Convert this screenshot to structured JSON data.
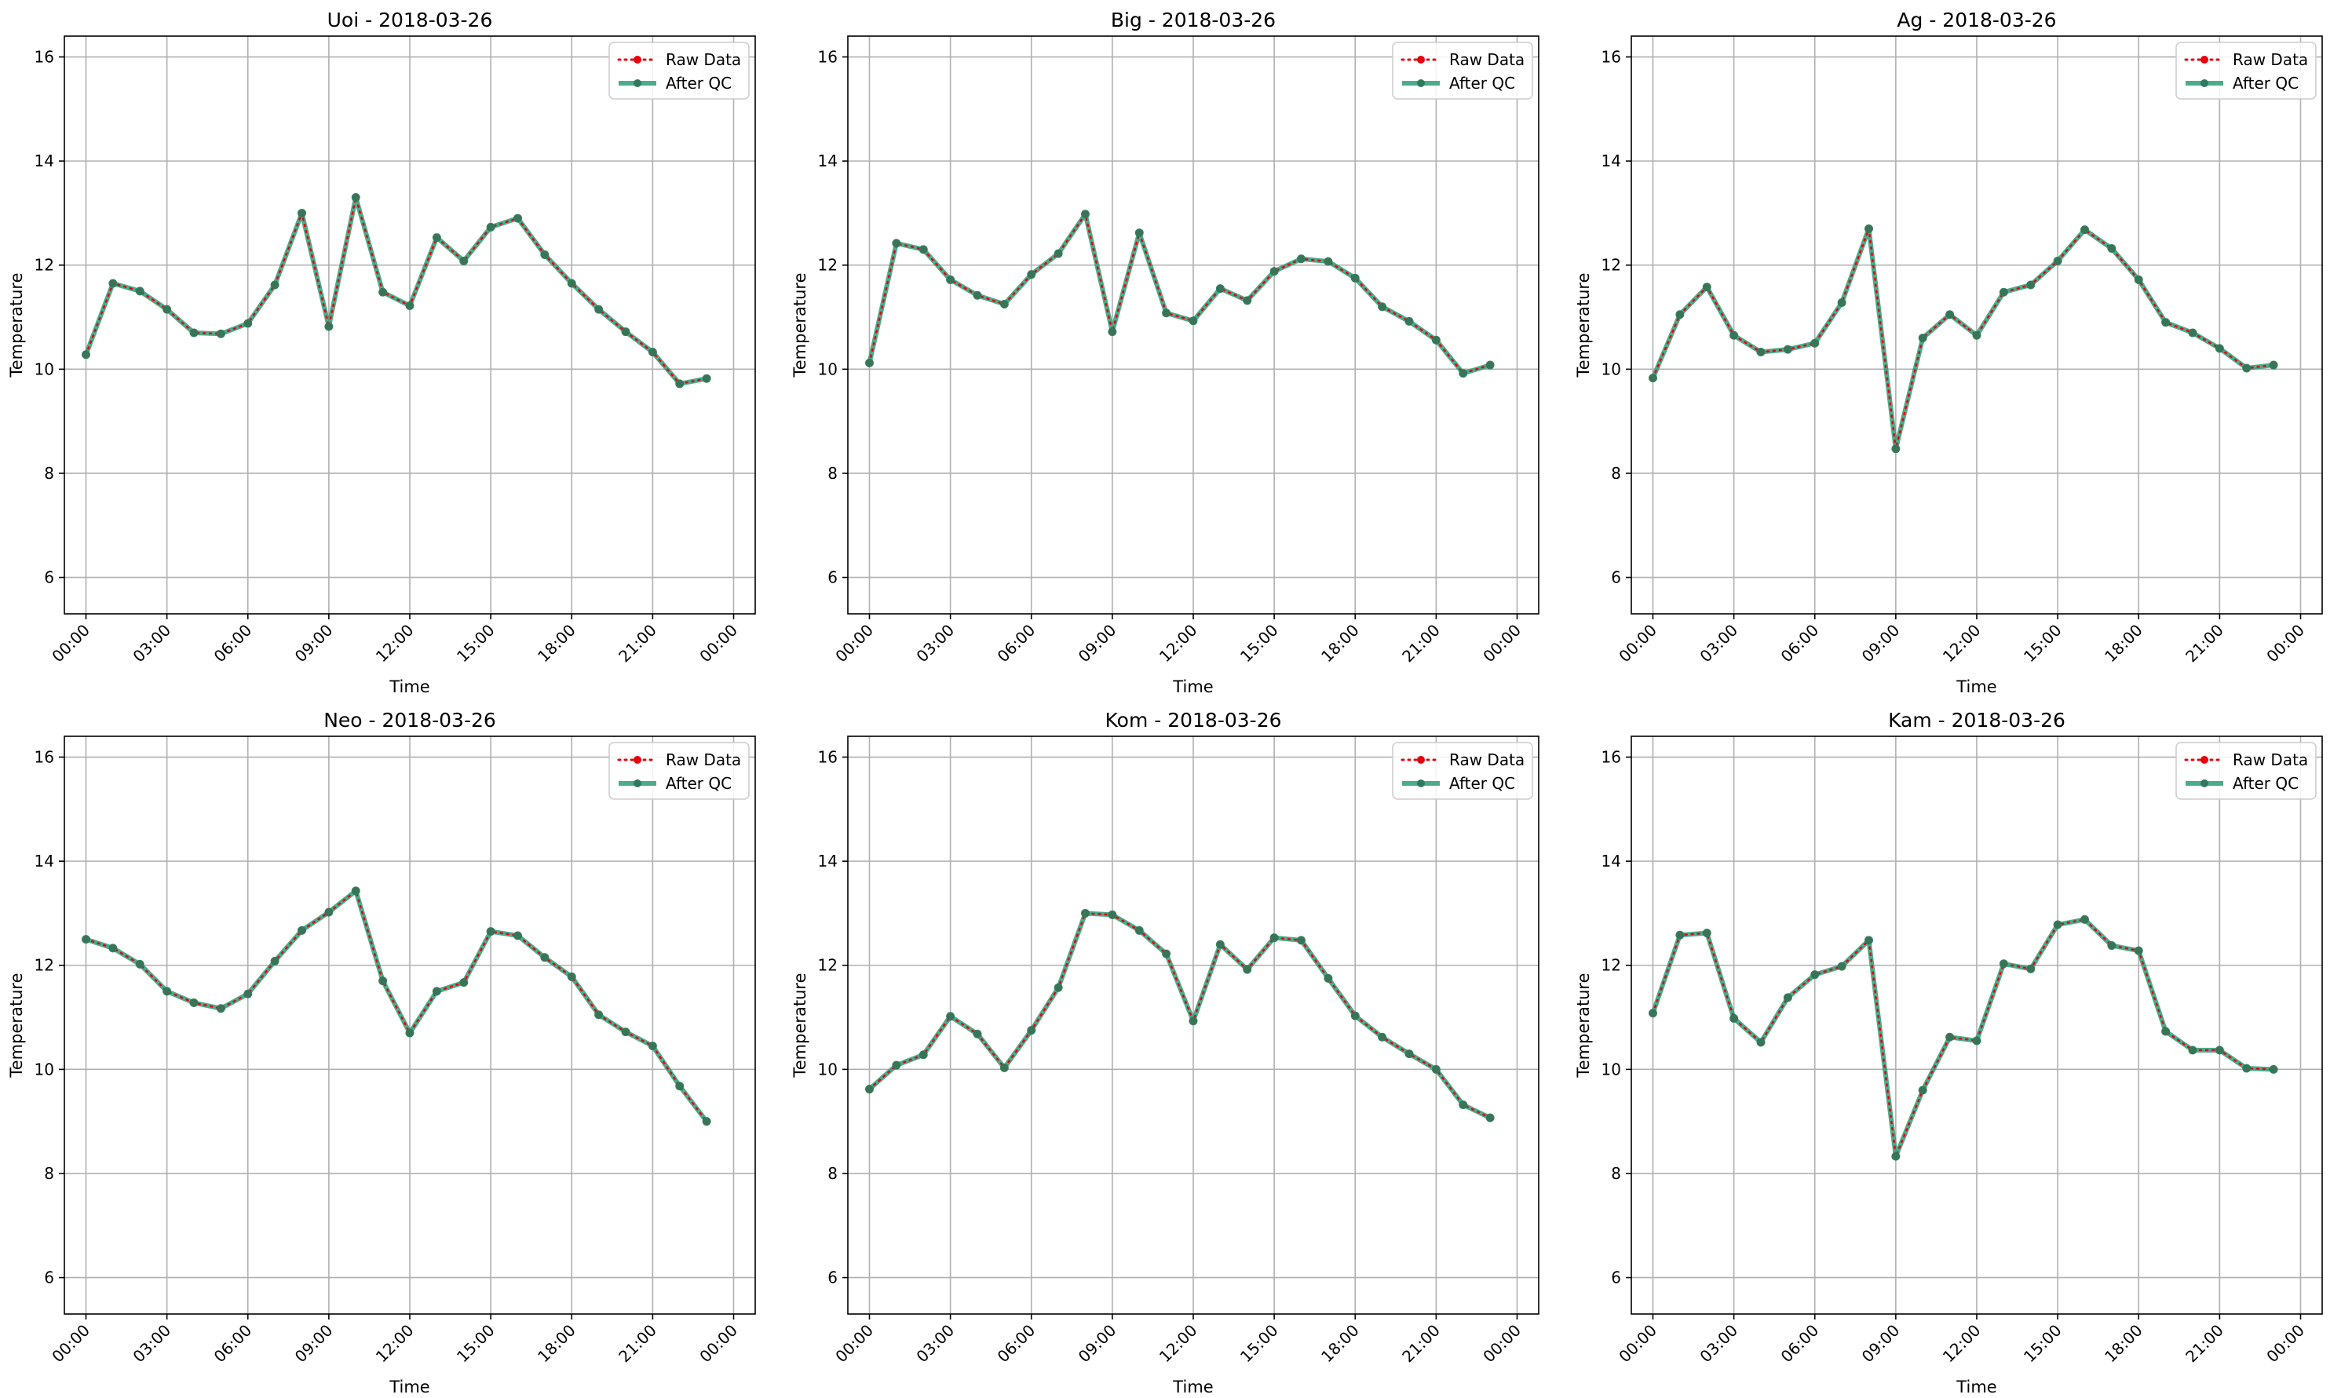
{
  "figure": {
    "ylabel": "Temperature",
    "xlabel": "Time",
    "legend": [
      "Raw Data",
      "After QC"
    ]
  },
  "chart_data": [
    {
      "type": "line",
      "title": "Uoi - 2018-03-26",
      "xlabel": "Time",
      "ylabel": "Temperature",
      "ylim": [
        5.3,
        16.4
      ],
      "yticks": [
        6,
        8,
        10,
        12,
        14,
        16
      ],
      "xticks": [
        "00:00",
        "03:00",
        "06:00",
        "09:00",
        "12:00",
        "15:00",
        "18:00",
        "21:00",
        "00:00"
      ],
      "grid": true,
      "legend_position": "top-right",
      "x": [
        "00:00",
        "01:00",
        "02:00",
        "03:00",
        "04:00",
        "05:00",
        "06:00",
        "07:00",
        "08:00",
        "09:00",
        "10:00",
        "11:00",
        "12:00",
        "13:00",
        "14:00",
        "15:00",
        "16:00",
        "17:00",
        "18:00",
        "19:00",
        "20:00",
        "21:00",
        "22:00",
        "23:00"
      ],
      "series": [
        {
          "name": "Raw Data",
          "color": "#e8000b",
          "values": [
            10.28,
            11.65,
            11.5,
            11.15,
            10.7,
            10.68,
            10.88,
            11.62,
            13.0,
            10.82,
            13.3,
            11.48,
            11.22,
            12.53,
            12.08,
            12.73,
            12.9,
            12.2,
            11.65,
            11.15,
            10.72,
            10.33,
            9.72,
            9.82
          ]
        },
        {
          "name": "After QC",
          "color": "#2a9d78",
          "values": [
            10.28,
            11.65,
            11.5,
            11.15,
            10.7,
            10.68,
            10.88,
            11.62,
            13.0,
            10.82,
            13.3,
            11.48,
            11.22,
            12.53,
            12.08,
            12.73,
            12.9,
            12.2,
            11.65,
            11.15,
            10.72,
            10.33,
            9.72,
            9.82
          ]
        }
      ]
    },
    {
      "type": "line",
      "title": "Big - 2018-03-26",
      "xlabel": "Time",
      "ylabel": "Temperature",
      "ylim": [
        5.3,
        16.4
      ],
      "yticks": [
        6,
        8,
        10,
        12,
        14,
        16
      ],
      "xticks": [
        "00:00",
        "03:00",
        "06:00",
        "09:00",
        "12:00",
        "15:00",
        "18:00",
        "21:00",
        "00:00"
      ],
      "grid": true,
      "legend_position": "top-right",
      "x": [
        "00:00",
        "01:00",
        "02:00",
        "03:00",
        "04:00",
        "05:00",
        "06:00",
        "07:00",
        "08:00",
        "09:00",
        "10:00",
        "11:00",
        "12:00",
        "13:00",
        "14:00",
        "15:00",
        "16:00",
        "17:00",
        "18:00",
        "19:00",
        "20:00",
        "21:00",
        "22:00",
        "23:00"
      ],
      "series": [
        {
          "name": "Raw Data",
          "color": "#e8000b",
          "values": [
            10.12,
            12.42,
            12.3,
            11.72,
            11.42,
            11.25,
            11.82,
            12.22,
            12.98,
            10.72,
            12.62,
            11.08,
            10.93,
            11.55,
            11.32,
            11.88,
            12.12,
            12.07,
            11.75,
            11.2,
            10.92,
            10.56,
            9.92,
            10.08
          ]
        },
        {
          "name": "After QC",
          "color": "#2a9d78",
          "values": [
            10.12,
            12.42,
            12.3,
            11.72,
            11.42,
            11.25,
            11.82,
            12.22,
            12.98,
            10.72,
            12.62,
            11.08,
            10.93,
            11.55,
            11.32,
            11.88,
            12.12,
            12.07,
            11.75,
            11.2,
            10.92,
            10.56,
            9.92,
            10.08
          ]
        }
      ]
    },
    {
      "type": "line",
      "title": "Ag - 2018-03-26",
      "xlabel": "Time",
      "ylabel": "Temperature",
      "ylim": [
        5.3,
        16.4
      ],
      "yticks": [
        6,
        8,
        10,
        12,
        14,
        16
      ],
      "xticks": [
        "00:00",
        "03:00",
        "06:00",
        "09:00",
        "12:00",
        "15:00",
        "18:00",
        "21:00",
        "00:00"
      ],
      "grid": true,
      "legend_position": "top-right",
      "x": [
        "00:00",
        "01:00",
        "02:00",
        "03:00",
        "04:00",
        "05:00",
        "06:00",
        "07:00",
        "08:00",
        "09:00",
        "10:00",
        "11:00",
        "12:00",
        "13:00",
        "14:00",
        "15:00",
        "16:00",
        "17:00",
        "18:00",
        "19:00",
        "20:00",
        "21:00",
        "22:00",
        "23:00"
      ],
      "series": [
        {
          "name": "Raw Data",
          "color": "#e8000b",
          "values": [
            9.83,
            11.05,
            11.58,
            10.65,
            10.33,
            10.38,
            10.5,
            11.28,
            12.7,
            8.47,
            10.6,
            11.05,
            10.65,
            11.48,
            11.62,
            12.08,
            12.68,
            12.32,
            11.72,
            10.9,
            10.7,
            10.4,
            10.02,
            10.08
          ]
        },
        {
          "name": "After QC",
          "color": "#2a9d78",
          "values": [
            9.83,
            11.05,
            11.58,
            10.65,
            10.33,
            10.38,
            10.5,
            11.28,
            12.7,
            8.47,
            10.6,
            11.05,
            10.65,
            11.48,
            11.62,
            12.08,
            12.68,
            12.32,
            11.72,
            10.9,
            10.7,
            10.4,
            10.02,
            10.08
          ]
        }
      ]
    },
    {
      "type": "line",
      "title": "Neo - 2018-03-26",
      "xlabel": "Time",
      "ylabel": "Temperature",
      "ylim": [
        5.3,
        16.4
      ],
      "yticks": [
        6,
        8,
        10,
        12,
        14,
        16
      ],
      "xticks": [
        "00:00",
        "03:00",
        "06:00",
        "09:00",
        "12:00",
        "15:00",
        "18:00",
        "21:00",
        "00:00"
      ],
      "grid": true,
      "legend_position": "top-right",
      "x": [
        "00:00",
        "01:00",
        "02:00",
        "03:00",
        "04:00",
        "05:00",
        "06:00",
        "07:00",
        "08:00",
        "09:00",
        "10:00",
        "11:00",
        "12:00",
        "13:00",
        "14:00",
        "15:00",
        "16:00",
        "17:00",
        "18:00",
        "19:00",
        "20:00",
        "21:00",
        "22:00",
        "23:00"
      ],
      "series": [
        {
          "name": "Raw Data",
          "color": "#e8000b",
          "values": [
            12.5,
            12.33,
            12.02,
            11.5,
            11.28,
            11.17,
            11.45,
            12.08,
            12.67,
            13.02,
            13.43,
            11.7,
            10.7,
            11.5,
            11.67,
            12.65,
            12.57,
            12.15,
            11.78,
            11.05,
            10.72,
            10.45,
            9.68,
            9.0
          ]
        },
        {
          "name": "After QC",
          "color": "#2a9d78",
          "values": [
            12.5,
            12.33,
            12.02,
            11.5,
            11.28,
            11.17,
            11.45,
            12.08,
            12.67,
            13.02,
            13.43,
            11.7,
            10.7,
            11.5,
            11.67,
            12.65,
            12.57,
            12.15,
            11.78,
            11.05,
            10.72,
            10.45,
            9.68,
            9.0
          ]
        }
      ]
    },
    {
      "type": "line",
      "title": "Kom - 2018-03-26",
      "xlabel": "Time",
      "ylabel": "Temperature",
      "ylim": [
        5.3,
        16.4
      ],
      "yticks": [
        6,
        8,
        10,
        12,
        14,
        16
      ],
      "xticks": [
        "00:00",
        "03:00",
        "06:00",
        "09:00",
        "12:00",
        "15:00",
        "18:00",
        "21:00",
        "00:00"
      ],
      "grid": true,
      "legend_position": "top-right",
      "x": [
        "00:00",
        "01:00",
        "02:00",
        "03:00",
        "04:00",
        "05:00",
        "06:00",
        "07:00",
        "08:00",
        "09:00",
        "10:00",
        "11:00",
        "12:00",
        "13:00",
        "14:00",
        "15:00",
        "16:00",
        "17:00",
        "18:00",
        "19:00",
        "20:00",
        "21:00",
        "22:00",
        "23:00"
      ],
      "series": [
        {
          "name": "Raw Data",
          "color": "#e8000b",
          "values": [
            9.62,
            10.08,
            10.28,
            11.02,
            10.68,
            10.03,
            10.75,
            11.57,
            13.0,
            12.97,
            12.67,
            12.22,
            10.93,
            12.4,
            11.92,
            12.53,
            12.48,
            11.75,
            11.03,
            10.62,
            10.3,
            10.0,
            9.32,
            9.07
          ]
        },
        {
          "name": "After QC",
          "color": "#2a9d78",
          "values": [
            9.62,
            10.08,
            10.28,
            11.02,
            10.68,
            10.03,
            10.75,
            11.57,
            13.0,
            12.97,
            12.67,
            12.22,
            10.93,
            12.4,
            11.92,
            12.53,
            12.48,
            11.75,
            11.03,
            10.62,
            10.3,
            10.0,
            9.32,
            9.07
          ]
        }
      ]
    },
    {
      "type": "line",
      "title": "Kam - 2018-03-26",
      "xlabel": "Time",
      "ylabel": "Temperature",
      "ylim": [
        5.3,
        16.4
      ],
      "yticks": [
        6,
        8,
        10,
        12,
        14,
        16
      ],
      "xticks": [
        "00:00",
        "03:00",
        "06:00",
        "09:00",
        "12:00",
        "15:00",
        "18:00",
        "21:00",
        "00:00"
      ],
      "grid": true,
      "legend_position": "top-right",
      "x": [
        "00:00",
        "01:00",
        "02:00",
        "03:00",
        "04:00",
        "05:00",
        "06:00",
        "07:00",
        "08:00",
        "09:00",
        "10:00",
        "11:00",
        "12:00",
        "13:00",
        "14:00",
        "15:00",
        "16:00",
        "17:00",
        "18:00",
        "19:00",
        "20:00",
        "21:00",
        "22:00",
        "23:00"
      ],
      "series": [
        {
          "name": "Raw Data",
          "color": "#e8000b",
          "values": [
            11.08,
            12.58,
            12.62,
            10.98,
            10.52,
            11.38,
            11.82,
            11.98,
            12.48,
            8.33,
            9.6,
            10.62,
            10.55,
            12.03,
            11.93,
            12.78,
            12.88,
            12.38,
            12.28,
            10.73,
            10.37,
            10.37,
            10.02,
            10.0
          ]
        },
        {
          "name": "After QC",
          "color": "#2a9d78",
          "values": [
            11.08,
            12.58,
            12.62,
            10.98,
            10.52,
            11.38,
            11.82,
            11.98,
            12.48,
            8.33,
            9.6,
            10.62,
            10.55,
            12.03,
            11.93,
            12.78,
            12.88,
            12.38,
            12.28,
            10.73,
            10.37,
            10.37,
            10.02,
            10.0
          ]
        }
      ]
    }
  ]
}
